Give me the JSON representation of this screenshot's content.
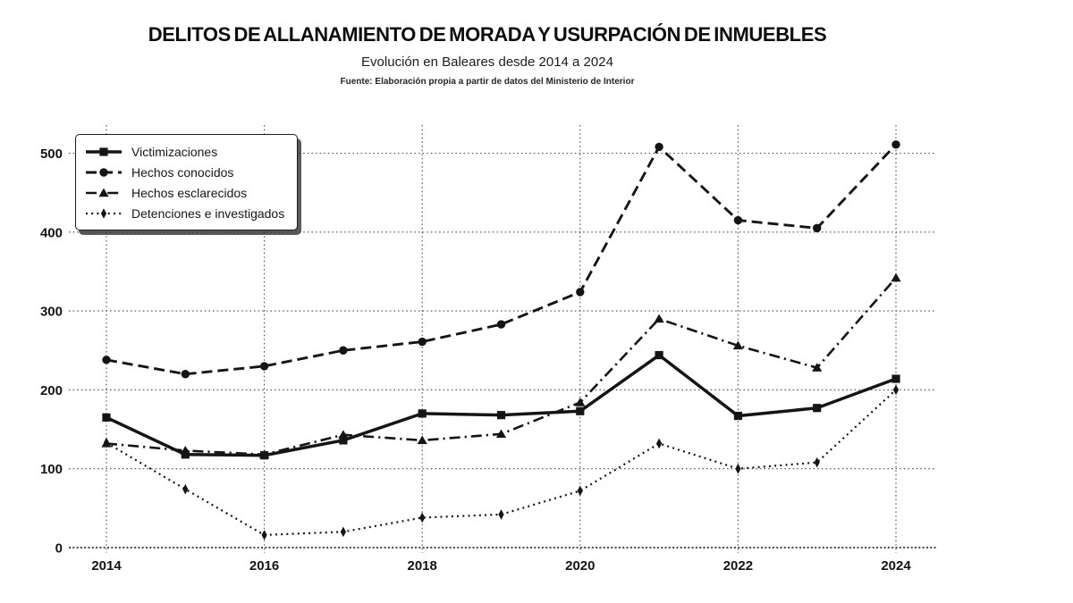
{
  "page": {
    "title": "DELITOS DE ALLANAMIENTO DE MORADA Y USURPACIÓN DE INMUEBLES",
    "subtitle": "Evolución en Baleares desde 2014 a 2024",
    "source": "Fuente: Elaboración propia a partir de datos del Ministerio de Interior"
  },
  "chart_data": {
    "type": "line",
    "title": "DELITOS DE ALLANAMIENTO DE MORADA Y USURPACIÓN DE INMUEBLES",
    "subtitle": "Evolución en Baleares desde 2014 a 2024",
    "source": "Fuente: Elaboración propia a partir de datos del Ministerio de Interior",
    "x": [
      2014,
      2015,
      2016,
      2017,
      2018,
      2019,
      2020,
      2021,
      2022,
      2023,
      2024
    ],
    "xticks": [
      2014,
      2016,
      2018,
      2020,
      2022,
      2024
    ],
    "yticks": [
      0,
      100,
      200,
      300,
      400,
      500
    ],
    "ylim": [
      0,
      520
    ],
    "grid": true,
    "legend_position": "top-left",
    "colors": {
      "line": "#151515",
      "grid": "#4f4f4f",
      "axis": "#2e2e2e",
      "background": "#ffffff"
    },
    "series": [
      {
        "name": "Victimizaciones",
        "line_style": "solid",
        "marker": "square",
        "values": [
          165,
          118,
          117,
          136,
          170,
          168,
          173,
          244,
          167,
          177,
          214
        ]
      },
      {
        "name": "Hechos conocidos",
        "line_style": "dashed",
        "marker": "circle",
        "values": [
          238,
          220,
          230,
          250,
          261,
          283,
          324,
          508,
          415,
          405,
          511
        ]
      },
      {
        "name": "Hechos esclarecidos",
        "line_style": "dashdot",
        "marker": "triangle",
        "values": [
          132,
          123,
          118,
          143,
          136,
          144,
          184,
          290,
          256,
          228,
          342
        ]
      },
      {
        "name": "Detenciones e investigados",
        "line_style": "dotted",
        "marker": "diamond",
        "values": [
          133,
          74,
          16,
          20,
          38,
          42,
          72,
          132,
          100,
          108,
          200
        ]
      }
    ]
  }
}
